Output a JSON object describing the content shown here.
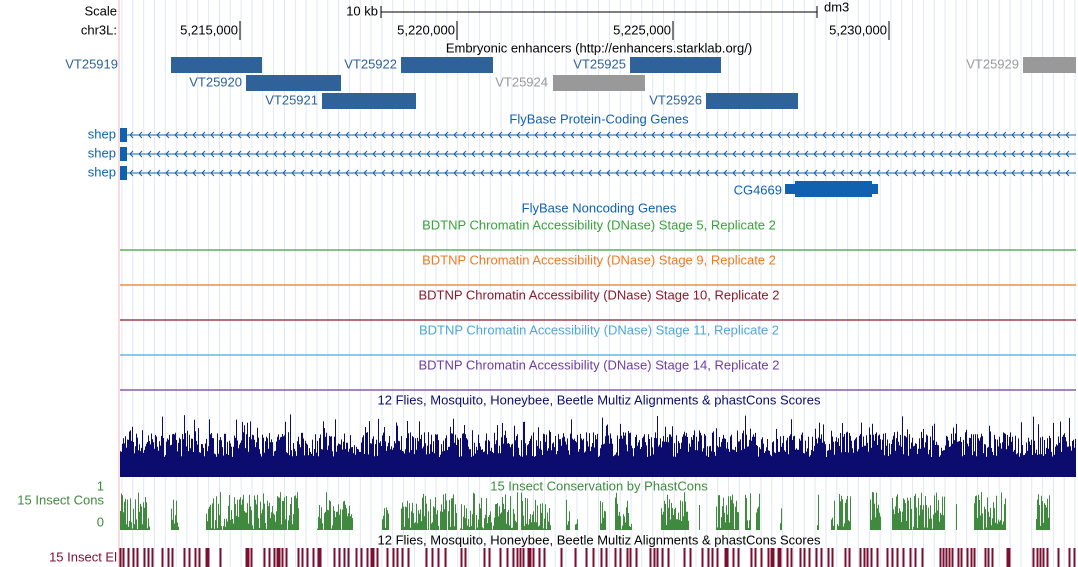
{
  "ruler": {
    "scale_label": "Scale",
    "scale_text": "10 kb",
    "assembly": "dm3",
    "chrom": "chr3L:",
    "positions": [
      "5,215,000",
      "5,220,000",
      "5,225,000",
      "5,230,000"
    ]
  },
  "enhancers": {
    "title": "Embryonic enhancers (http://enhancers.starklab.org/)",
    "items": [
      "VT25919",
      "VT25920",
      "VT25921",
      "VT25922",
      "VT25924",
      "VT25925",
      "VT25926",
      "VT25929"
    ]
  },
  "protein_coding": {
    "title": "FlyBase Protein-Coding Genes",
    "genes": [
      "shep",
      "shep",
      "shep",
      "CG4669"
    ]
  },
  "noncoding": {
    "title": "FlyBase Noncoding Genes"
  },
  "dnase": [
    "BDTNP Chromatin Accessibility (DNase) Stage 5, Replicate 2",
    "BDTNP Chromatin Accessibility (DNase) Stage 9, Replicate 2",
    "BDTNP Chromatin Accessibility (DNase) Stage 10, Replicate 2",
    "BDTNP Chromatin Accessibility (DNase) Stage 11, Replicate 2",
    "BDTNP Chromatin Accessibility (DNase) Stage 14, Replicate 2"
  ],
  "multiz": {
    "title": "12 Flies, Mosquito, Honeybee, Beetle Multiz Alignments & phastCons Scores"
  },
  "phastcons": {
    "title": "15 Insect Conservation by PhastCons",
    "label": "15 Insect Cons",
    "y_max": 1,
    "y_min": 0
  },
  "elements": {
    "title": "12 Flies, Mosquito, Honeybee, Beetle Multiz Alignments & phastCons Scores",
    "label": "15 Insect El"
  }
}
